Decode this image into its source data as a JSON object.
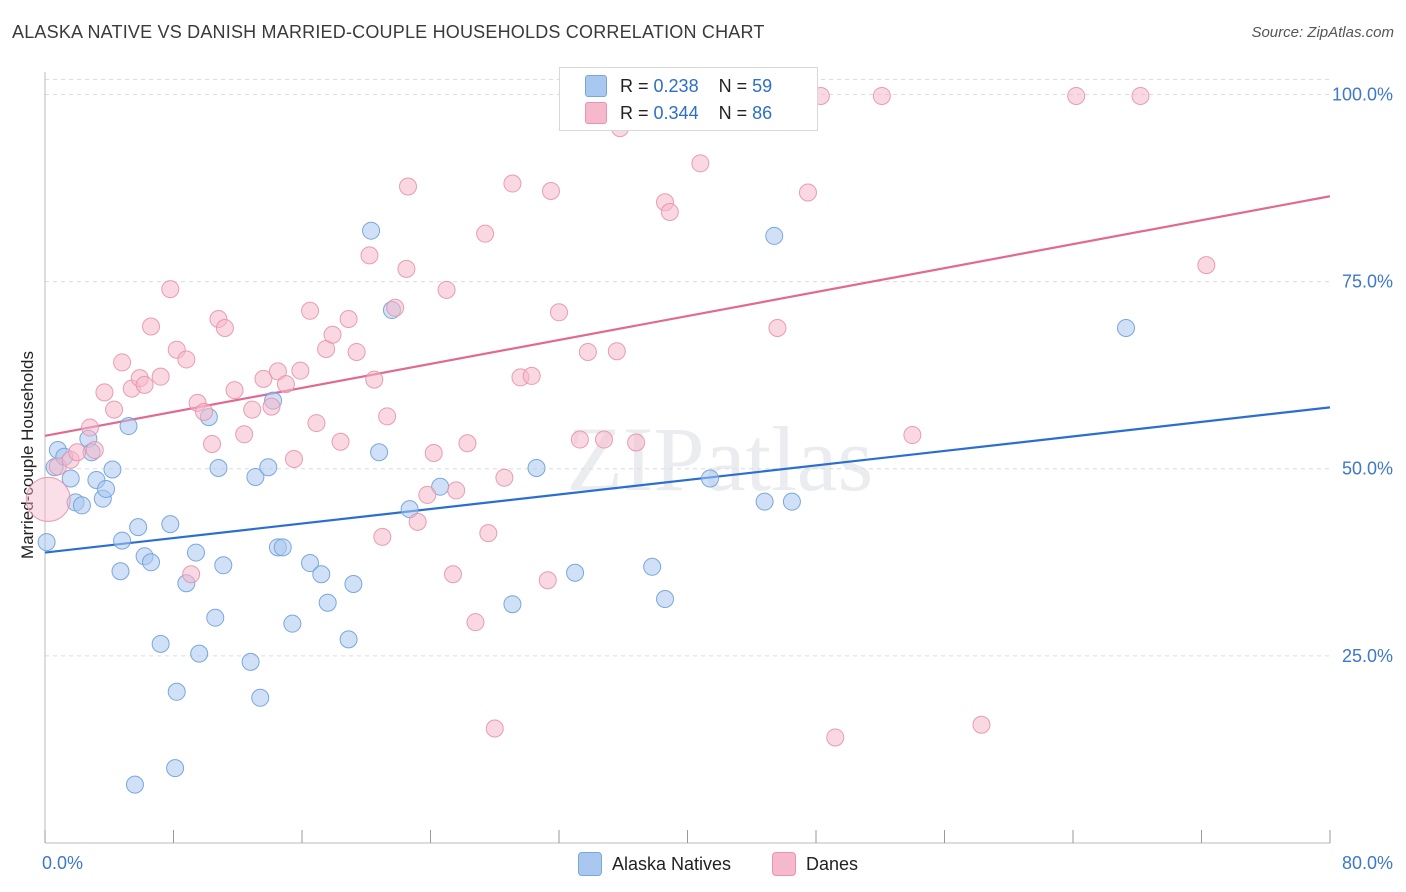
{
  "title": "ALASKA NATIVE VS DANISH MARRIED-COUPLE HOUSEHOLDS CORRELATION CHART",
  "source": "Source: ZipAtlas.com",
  "watermark": "ZIPatlas",
  "legend": {
    "rows": [
      {
        "r_label": "R =",
        "r_value": "0.238",
        "n_label": "N =",
        "n_value": "59",
        "color": "#a9c8f0"
      },
      {
        "r_label": "R =",
        "r_value": "0.344",
        "n_label": "N =",
        "n_value": "86",
        "color": "#f6b8cb"
      }
    ]
  },
  "bottom_legend": [
    {
      "label": "Alaska Natives",
      "color": "#a9c8f0"
    },
    {
      "label": "Danes",
      "color": "#f6b8cb"
    }
  ],
  "chart_data": {
    "type": "scatter",
    "title": "ALASKA NATIVE VS DANISH MARRIED-COUPLE HOUSEHOLDS CORRELATION CHART",
    "xlabel": "",
    "ylabel": "Married-couple Households",
    "xlim": [
      0,
      80
    ],
    "ylim": [
      0,
      103
    ],
    "x_tick_labels": [
      "0.0%",
      "80.0%"
    ],
    "y_ticks": [
      25,
      50,
      75,
      100
    ],
    "y_tick_labels": [
      "25.0%",
      "50.0%",
      "75.0%",
      "100.0%"
    ],
    "grid": true,
    "series": [
      {
        "name": "Alaska Natives",
        "color": "#a9c8f0",
        "stroke": "#6f9fd8",
        "line_color": "#2a6fcf",
        "trend": [
          [
            0,
            38.8
          ],
          [
            80,
            58.2
          ]
        ],
        "points": [
          [
            0.1,
            40.2
          ],
          [
            0.6,
            50.2
          ],
          [
            0.8,
            52.5
          ],
          [
            1.2,
            51.6
          ],
          [
            1.6,
            48.7
          ],
          [
            1.9,
            45.5
          ],
          [
            2.3,
            45.1
          ],
          [
            2.7,
            54.0
          ],
          [
            2.9,
            52.2
          ],
          [
            3.2,
            48.5
          ],
          [
            3.6,
            46.0
          ],
          [
            3.8,
            47.3
          ],
          [
            4.2,
            49.9
          ],
          [
            4.7,
            36.3
          ],
          [
            4.8,
            40.4
          ],
          [
            5.2,
            55.7
          ],
          [
            5.6,
            7.8
          ],
          [
            5.8,
            42.2
          ],
          [
            6.2,
            38.3
          ],
          [
            6.6,
            37.5
          ],
          [
            7.2,
            26.6
          ],
          [
            7.8,
            42.6
          ],
          [
            8.1,
            10.0
          ],
          [
            8.2,
            20.2
          ],
          [
            8.8,
            34.7
          ],
          [
            9.4,
            38.8
          ],
          [
            9.6,
            25.3
          ],
          [
            10.2,
            56.9
          ],
          [
            10.6,
            30.1
          ],
          [
            10.8,
            50.1
          ],
          [
            11.1,
            37.1
          ],
          [
            12.8,
            24.2
          ],
          [
            13.1,
            48.9
          ],
          [
            13.4,
            19.4
          ],
          [
            13.9,
            50.2
          ],
          [
            14.5,
            39.5
          ],
          [
            14.8,
            39.5
          ],
          [
            14.2,
            59.1
          ],
          [
            15.4,
            29.3
          ],
          [
            16.5,
            37.4
          ],
          [
            17.2,
            35.9
          ],
          [
            17.6,
            32.1
          ],
          [
            18.9,
            27.2
          ],
          [
            19.2,
            34.6
          ],
          [
            20.3,
            81.8
          ],
          [
            20.8,
            52.2
          ],
          [
            21.6,
            71.2
          ],
          [
            22.7,
            44.6
          ],
          [
            24.6,
            47.6
          ],
          [
            29.1,
            31.9
          ],
          [
            30.6,
            50.1
          ],
          [
            33.0,
            36.1
          ],
          [
            37.8,
            36.9
          ],
          [
            38.6,
            32.6
          ],
          [
            41.4,
            48.7
          ],
          [
            44.8,
            45.6
          ],
          [
            45.4,
            81.1
          ],
          [
            46.5,
            45.6
          ],
          [
            67.3,
            68.8
          ]
        ]
      },
      {
        "name": "Danes",
        "color": "#f6b8cb",
        "stroke": "#e593ad",
        "line_color": "#e06a93",
        "trend": [
          [
            0,
            54.4
          ],
          [
            80,
            86.4
          ]
        ],
        "points": [
          [
            0.2,
            45.9
          ],
          [
            0.8,
            50.3
          ],
          [
            1.6,
            51.2
          ],
          [
            2.0,
            52.2
          ],
          [
            2.8,
            55.5
          ],
          [
            3.1,
            52.5
          ],
          [
            3.7,
            60.2
          ],
          [
            4.3,
            57.9
          ],
          [
            4.8,
            64.2
          ],
          [
            5.4,
            60.7
          ],
          [
            5.9,
            62.1
          ],
          [
            6.2,
            61.2
          ],
          [
            6.6,
            69.0
          ],
          [
            7.2,
            62.3
          ],
          [
            7.8,
            74.0
          ],
          [
            8.2,
            65.9
          ],
          [
            8.8,
            64.6
          ],
          [
            9.5,
            58.8
          ],
          [
            9.9,
            57.6
          ],
          [
            10.4,
            53.3
          ],
          [
            10.8,
            70.0
          ],
          [
            11.2,
            68.8
          ],
          [
            11.8,
            60.5
          ],
          [
            12.4,
            54.6
          ],
          [
            12.9,
            57.9
          ],
          [
            13.6,
            62.0
          ],
          [
            14.1,
            58.3
          ],
          [
            14.5,
            63.0
          ],
          [
            15.0,
            61.3
          ],
          [
            15.5,
            51.3
          ],
          [
            15.9,
            63.1
          ],
          [
            16.5,
            71.1
          ],
          [
            16.9,
            56.1
          ],
          [
            17.5,
            66.0
          ],
          [
            17.9,
            67.9
          ],
          [
            18.4,
            53.6
          ],
          [
            18.9,
            70.0
          ],
          [
            19.4,
            65.6
          ],
          [
            20.2,
            78.5
          ],
          [
            20.5,
            61.9
          ],
          [
            21.0,
            40.9
          ],
          [
            21.3,
            57.0
          ],
          [
            21.8,
            71.5
          ],
          [
            22.5,
            76.7
          ],
          [
            22.6,
            87.7
          ],
          [
            23.2,
            42.9
          ],
          [
            23.8,
            46.5
          ],
          [
            24.2,
            52.1
          ],
          [
            25.0,
            73.9
          ],
          [
            25.6,
            47.1
          ],
          [
            25.4,
            35.9
          ],
          [
            26.3,
            53.4
          ],
          [
            26.8,
            29.5
          ],
          [
            27.4,
            81.4
          ],
          [
            27.6,
            41.4
          ],
          [
            28.0,
            15.3
          ],
          [
            28.6,
            48.8
          ],
          [
            29.1,
            88.1
          ],
          [
            29.6,
            62.2
          ],
          [
            30.3,
            62.4
          ],
          [
            31.3,
            35.1
          ],
          [
            31.5,
            87.1
          ],
          [
            32.0,
            70.9
          ],
          [
            33.3,
            53.9
          ],
          [
            33.8,
            65.6
          ],
          [
            35.6,
            65.7
          ],
          [
            35.8,
            95.5
          ],
          [
            36.8,
            53.5
          ],
          [
            38.6,
            85.6
          ],
          [
            38.9,
            84.3
          ],
          [
            39.4,
            99.8
          ],
          [
            40.8,
            90.8
          ],
          [
            43.3,
            99.8
          ],
          [
            45.6,
            68.8
          ],
          [
            47.5,
            86.9
          ],
          [
            48.3,
            99.8
          ],
          [
            49.2,
            14.1
          ],
          [
            52.1,
            99.8
          ],
          [
            54.0,
            54.5
          ],
          [
            58.3,
            15.8
          ],
          [
            64.2,
            99.8
          ],
          [
            68.2,
            99.8
          ],
          [
            72.3,
            77.2
          ],
          [
            42.1,
            99.8
          ],
          [
            9.1,
            35.9
          ],
          [
            34.8,
            53.9
          ]
        ]
      }
    ]
  }
}
